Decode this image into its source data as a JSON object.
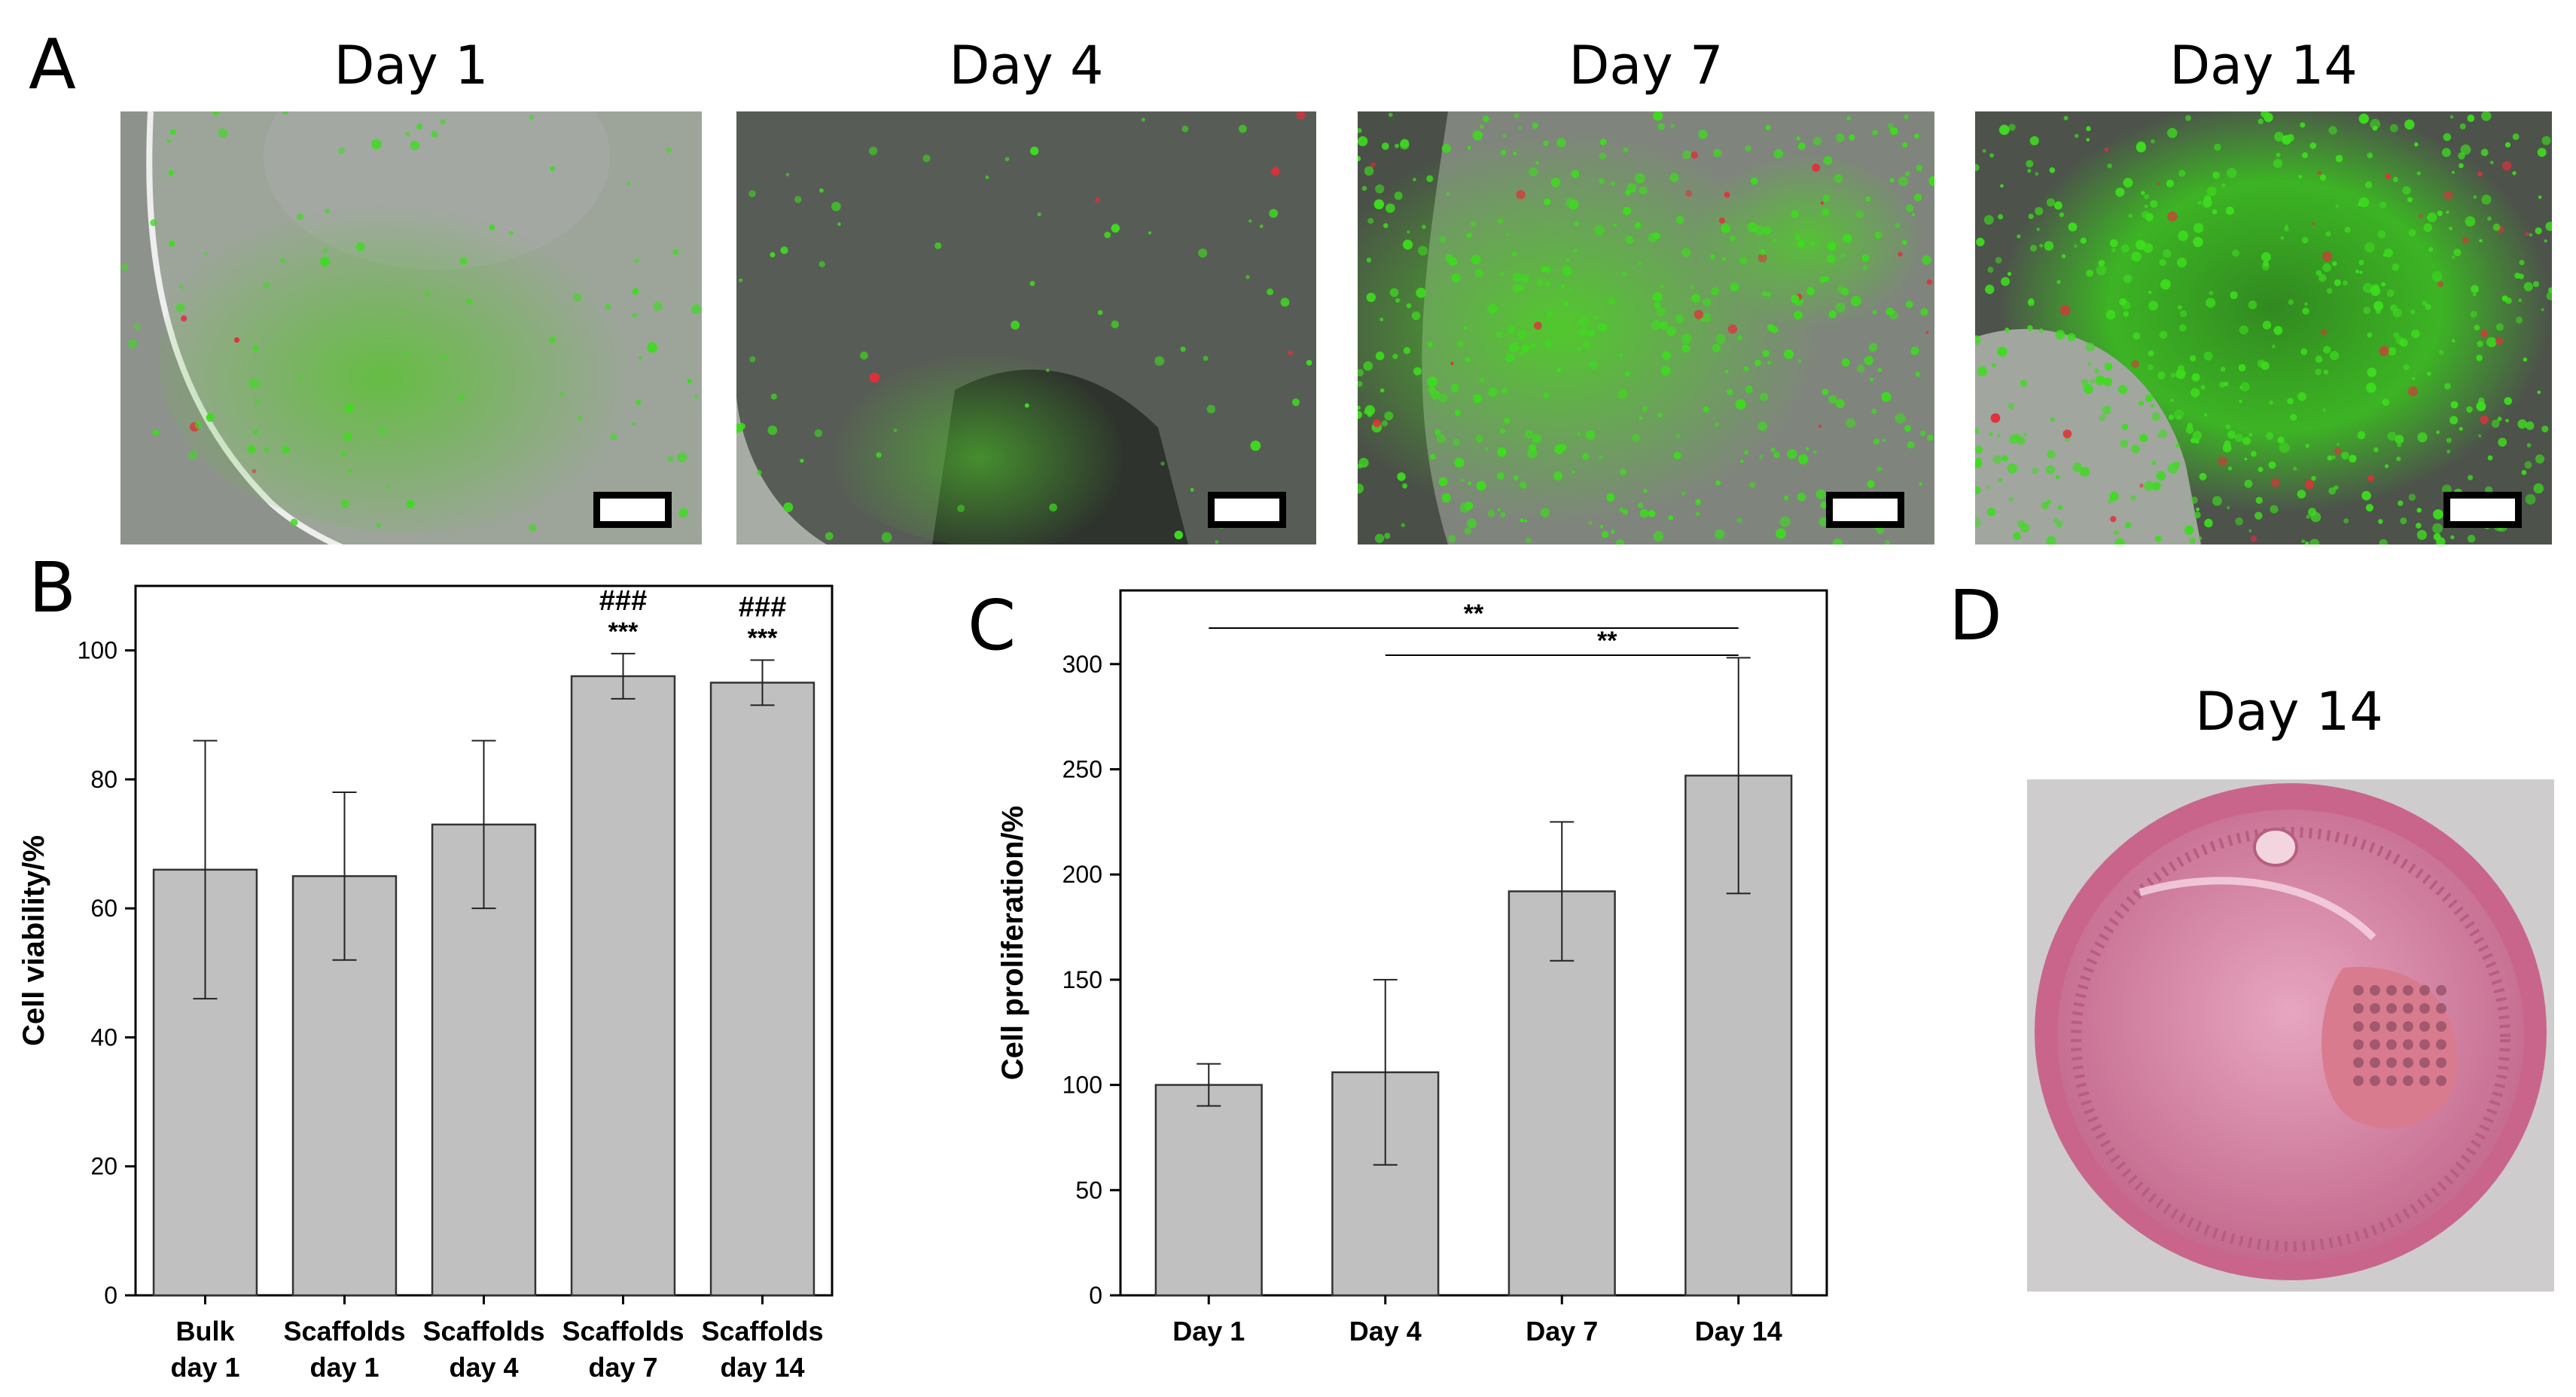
{
  "panels": {
    "a": {
      "letter": "A",
      "titles": [
        "Day 1",
        "Day 4",
        "Day 7",
        "Day 14"
      ]
    },
    "b": {
      "letter": "B"
    },
    "c": {
      "letter": "C"
    },
    "d": {
      "letter": "D",
      "title": "Day 14"
    }
  },
  "colors": {
    "bar_fill": "#c0c0c0",
    "bar_stroke": "#333333",
    "live_stain": "#3ddc1e",
    "dead_stain": "#e0303a",
    "medium": "#e69ab5"
  },
  "chart_data": [
    {
      "type": "bar",
      "panel": "B",
      "categories": [
        [
          "Bulk",
          "day 1"
        ],
        [
          "Scaffolds",
          "day 1"
        ],
        [
          "Scaffolds",
          "day 4"
        ],
        [
          "Scaffolds",
          "day 7"
        ],
        [
          "Scaffolds",
          "day 14"
        ]
      ],
      "values": [
        66,
        65,
        73,
        96,
        95
      ],
      "errors": [
        20,
        13,
        13,
        3.5,
        3.5
      ],
      "annotations": [
        {
          "bar": 3,
          "lines": [
            "###",
            "***"
          ]
        },
        {
          "bar": 4,
          "lines": [
            "###",
            "***"
          ]
        }
      ],
      "ylabel": "Cell viability/%",
      "ylim": [
        0,
        110
      ],
      "yticks": [
        0,
        20,
        40,
        60,
        80,
        100
      ],
      "grid": false
    },
    {
      "type": "bar",
      "panel": "C",
      "categories": [
        [
          "Day 1"
        ],
        [
          "Day 4"
        ],
        [
          "Day 7"
        ],
        [
          "Day 14"
        ]
      ],
      "values": [
        100,
        106,
        192,
        247
      ],
      "errors": [
        10,
        44,
        33,
        56
      ],
      "significance": [
        {
          "from": 0,
          "to": 3,
          "label": "**"
        },
        {
          "from": 1,
          "to": 3,
          "label": "**"
        }
      ],
      "ylabel": "Cell proliferation/%",
      "ylim": [
        0,
        335
      ],
      "yticks": [
        0,
        50,
        100,
        150,
        200,
        250,
        300
      ],
      "grid": false
    }
  ]
}
